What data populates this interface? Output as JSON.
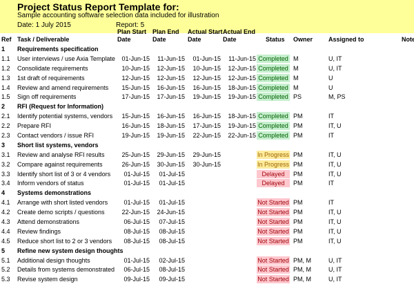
{
  "header": {
    "title": "Project Status Report Template for:",
    "subtitle": "Sample accounting software selection data included for illustration",
    "date": "Date: 1 July 2015",
    "report": "Report: 5"
  },
  "columns": {
    "ref": "Ref",
    "task": "Task / Deliverable",
    "plan_start": "Plan Start",
    "plan_end": "Plan End",
    "actual_start": "Actual Start",
    "actual_end": "Actual End",
    "date_suffix": "Date",
    "status": "Status",
    "owner": "Owner",
    "assigned": "Assigned to",
    "notes": "Note"
  },
  "status_colors": {
    "completed_bg": "#c6efce",
    "in_progress_bg": "#ffeb9c",
    "delayed_bg": "#ffc7ce",
    "not_started_bg": "#ffc7ce"
  },
  "rows": [
    {
      "section": true,
      "ref": "1",
      "task": "Requirements specification"
    },
    {
      "ref": "1.1",
      "task": "User interviews / use Axia Template",
      "ps": "01-Jun-15",
      "pe": "11-Jun-15",
      "as": "01-Jun-15",
      "ae": "11-Jun-15",
      "status": "Completed",
      "owner": "M",
      "assigned": "U, IT"
    },
    {
      "ref": "1.2",
      "task": "Consolidate requirements",
      "ps": "10-Jun-15",
      "pe": "12-Jun-15",
      "as": "10-Jun-15",
      "ae": "12-Jun-15",
      "status": "Completed",
      "owner": "M",
      "assigned": "U, IT"
    },
    {
      "ref": "1.3",
      "task": "1st draft of requirements",
      "ps": "12-Jun-15",
      "pe": "12-Jun-15",
      "as": "12-Jun-15",
      "ae": "12-Jun-15",
      "status": "Completed",
      "owner": "M",
      "assigned": "U"
    },
    {
      "ref": "1.4",
      "task": "Review and amend requirements",
      "ps": "15-Jun-15",
      "pe": "16-Jun-15",
      "as": "16-Jun-15",
      "ae": "18-Jun-15",
      "status": "Completed",
      "owner": "M",
      "assigned": "U"
    },
    {
      "ref": "1.5",
      "task": "Sign off requirements",
      "ps": "17-Jun-15",
      "pe": "17-Jun-15",
      "as": "19-Jun-15",
      "ae": "19-Jun-15",
      "status": "Completed",
      "owner": "PS",
      "assigned": "M, PS"
    },
    {
      "section": true,
      "ref": "2",
      "task": "RFI (Request for Information)"
    },
    {
      "ref": "2.1",
      "task": "Identify potential systems, vendors",
      "ps": "15-Jun-15",
      "pe": "16-Jun-15",
      "as": "16-Jun-15",
      "ae": "18-Jun-15",
      "status": "Completed",
      "owner": "PM",
      "assigned": "IT"
    },
    {
      "ref": "2.2",
      "task": "Prepare RFI",
      "ps": "16-Jun-15",
      "pe": "18-Jun-15",
      "as": "17-Jun-15",
      "ae": "19-Jun-15",
      "status": "Completed",
      "owner": "PM",
      "assigned": "IT, U"
    },
    {
      "ref": "2.3",
      "task": "Contact vendors / issue RFI",
      "ps": "19-Jun-15",
      "pe": "19-Jun-15",
      "as": "22-Jun-15",
      "ae": "22-Jun-15",
      "status": "Completed",
      "owner": "PM",
      "assigned": "IT"
    },
    {
      "section": true,
      "ref": "3",
      "task": "Short list systems, vendors"
    },
    {
      "ref": "3.1",
      "task": "Review and analyse RFI results",
      "ps": "25-Jun-15",
      "pe": "29-Jun-15",
      "as": "29-Jun-15",
      "ae": "",
      "status": "In Progress",
      "owner": "PM",
      "assigned": "IT, U"
    },
    {
      "ref": "3.2",
      "task": "Compare against requirements",
      "ps": "26-Jun-15",
      "pe": "30-Jun-15",
      "as": "30-Jun-15",
      "ae": "",
      "status": "In Progress",
      "owner": "PM",
      "assigned": "IT, U"
    },
    {
      "ref": "3.3",
      "task": "Identify short list of 3 or 4 vendors",
      "ps": "01-Jul-15",
      "pe": "01-Jul-15",
      "as": "",
      "ae": "",
      "status": "Delayed",
      "owner": "PM",
      "assigned": "IT, U"
    },
    {
      "ref": "3.4",
      "task": "Inform vendors of status",
      "ps": "01-Jul-15",
      "pe": "01-Jul-15",
      "as": "",
      "ae": "",
      "status": "Delayed",
      "owner": "PM",
      "assigned": "IT"
    },
    {
      "section": true,
      "ref": "4",
      "task": "Systems demonstrations"
    },
    {
      "ref": "4.1",
      "task": "Arrange with short listed vendors",
      "ps": "01-Jul-15",
      "pe": "01-Jul-15",
      "as": "",
      "ae": "",
      "status": "Not Started",
      "owner": "PM",
      "assigned": "IT"
    },
    {
      "ref": "4.2",
      "task": "Create demo scripts / questions",
      "ps": "22-Jun-15",
      "pe": "24-Jun-15",
      "as": "",
      "ae": "",
      "status": "Not Started",
      "owner": "PM",
      "assigned": "IT, U"
    },
    {
      "ref": "4.3",
      "task": "Attend demonstrations",
      "ps": "06-Jul-15",
      "pe": "07-Jul-15",
      "as": "",
      "ae": "",
      "status": "Not Started",
      "owner": "PM",
      "assigned": "IT, U"
    },
    {
      "ref": "4.4",
      "task": "Review findings",
      "ps": "08-Jul-15",
      "pe": "08-Jul-15",
      "as": "",
      "ae": "",
      "status": "Not Started",
      "owner": "PM",
      "assigned": "IT, U"
    },
    {
      "ref": "4.5",
      "task": "Reduce short list to 2 or 3 vendors",
      "ps": "08-Jul-15",
      "pe": "08-Jul-15",
      "as": "",
      "ae": "",
      "status": "Not Started",
      "owner": "PM",
      "assigned": "IT, U"
    },
    {
      "section": true,
      "ref": "5",
      "task": "Refine new system design thoughts"
    },
    {
      "ref": "5.1",
      "task": "Additional design thoughts",
      "ps": "01-Jul-15",
      "pe": "02-Jul-15",
      "as": "",
      "ae": "",
      "status": "Not Started",
      "owner": "PM, M",
      "assigned": "U, IT"
    },
    {
      "ref": "5.2",
      "task": "Details from systems demonstrated",
      "ps": "06-Jul-15",
      "pe": "08-Jul-15",
      "as": "",
      "ae": "",
      "status": "Not Started",
      "owner": "PM, M",
      "assigned": "U, IT"
    },
    {
      "ref": "5.3",
      "task": "Revise system design",
      "ps": "09-Jul-15",
      "pe": "09-Jul-15",
      "as": "",
      "ae": "",
      "status": "Not Started",
      "owner": "PM, M",
      "assigned": "U, IT"
    }
  ]
}
